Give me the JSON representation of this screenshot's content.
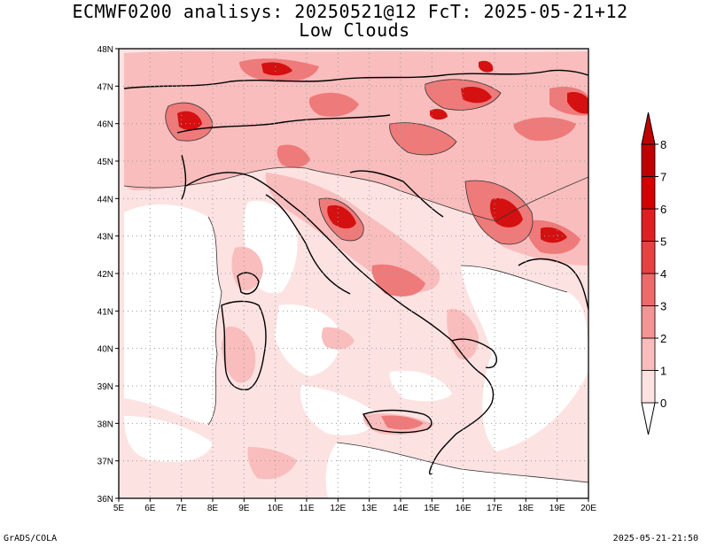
{
  "title": "ECMWF0200 analisys: 20250521@12 FcT: 2025-05-21+12",
  "subtitle": "Low Clouds",
  "lon_labels": [
    "5E",
    "6E",
    "7E",
    "8E",
    "9E",
    "10E",
    "11E",
    "12E",
    "13E",
    "14E",
    "15E",
    "16E",
    "17E",
    "18E",
    "19E",
    "20E"
  ],
  "lat_labels": [
    "48N",
    "47N",
    "46N",
    "45N",
    "44N",
    "43N",
    "42N",
    "41N",
    "40N",
    "39N",
    "38N",
    "37N",
    "36N"
  ],
  "colorbar": {
    "levels": [
      "0",
      "1",
      "2",
      "3",
      "4",
      "5",
      "6",
      "7",
      "8"
    ],
    "colors": [
      "#ffffff",
      "#fde2e2",
      "#f9bdbd",
      "#f49494",
      "#ee6a6a",
      "#e84141",
      "#e02020",
      "#d40000",
      "#c00000"
    ]
  },
  "map_colors": {
    "background": "#ffffff",
    "coast": "#000000",
    "grid": "#9a9a9a"
  },
  "footer_left": "GrADS/COLA",
  "footer_right": "2025-05-21-21:50"
}
